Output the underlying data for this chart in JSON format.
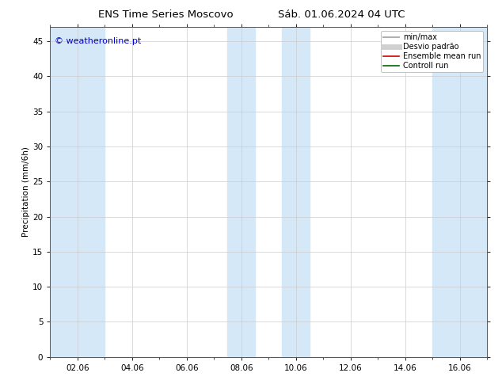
{
  "title_left": "ENS Time Series Moscovo",
  "title_right": "Sáb. 01.06.2024 04 UTC",
  "ylabel": "Precipitation (mm/6h)",
  "watermark": "© weatheronline.pt",
  "ylim": [
    0,
    47
  ],
  "yticks": [
    0,
    5,
    10,
    15,
    20,
    25,
    30,
    35,
    40,
    45
  ],
  "xtick_labels": [
    "02.06",
    "04.06",
    "06.06",
    "08.06",
    "10.06",
    "12.06",
    "14.06",
    "16.06"
  ],
  "xtick_positions": [
    2.0,
    4.0,
    6.0,
    8.0,
    10.0,
    12.0,
    14.0,
    16.0
  ],
  "xlim": [
    1.0,
    17.0
  ],
  "shaded_bands": [
    [
      1.0,
      3.0
    ],
    [
      7.5,
      8.5
    ],
    [
      9.5,
      10.5
    ],
    [
      15.0,
      17.0
    ]
  ],
  "band_color": "#d4e8f7",
  "background_color": "#ffffff",
  "legend_items": [
    {
      "label": "min/max",
      "color": "#b0b0b0",
      "lw": 1.5,
      "style": "solid"
    },
    {
      "label": "Desvio padrão",
      "color": "#d0d0d0",
      "lw": 5,
      "style": "solid"
    },
    {
      "label": "Ensemble mean run",
      "color": "#cc0000",
      "lw": 1.2,
      "style": "solid"
    },
    {
      "label": "Controll run",
      "color": "#006600",
      "lw": 1.2,
      "style": "solid"
    }
  ],
  "title_fontsize": 9.5,
  "axis_fontsize": 7.5,
  "legend_fontsize": 7.0,
  "watermark_color": "#0000cc",
  "watermark_fontsize": 8,
  "grid_color": "#cccccc",
  "spine_color": "#555555"
}
